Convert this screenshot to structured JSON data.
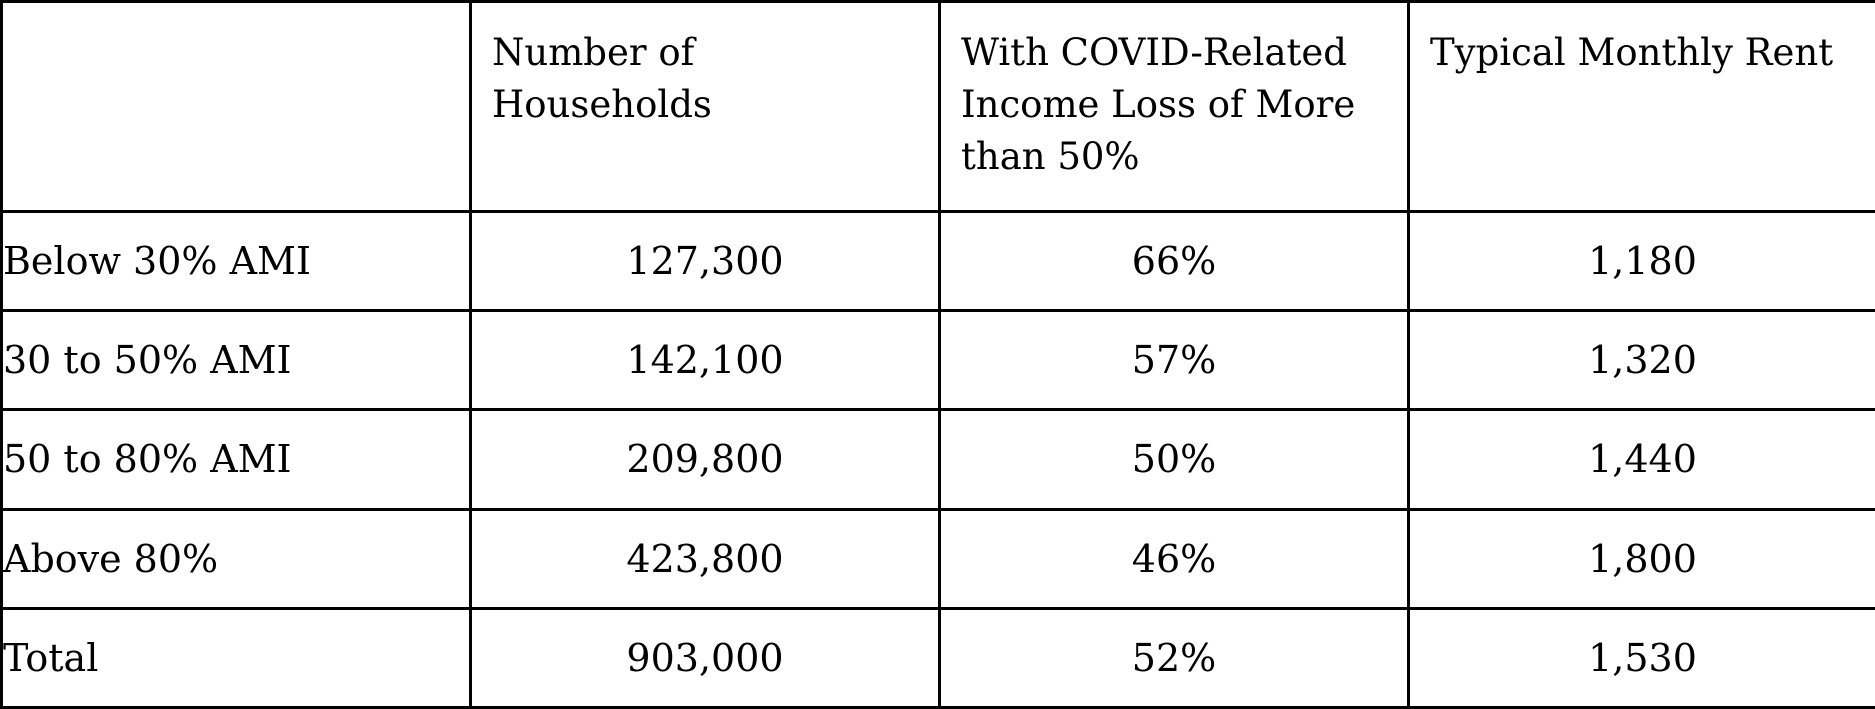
{
  "table": {
    "headers": [
      "",
      "Number of Households",
      "With COVID-Related Income Loss of More than 50%",
      "Typical Monthly Rent"
    ],
    "rows": [
      {
        "label": "Below 30% AMI",
        "households": "127,300",
        "income_loss": "66%",
        "rent": "1,180"
      },
      {
        "label": "30 to 50% AMI",
        "households": "142,100",
        "income_loss": "57%",
        "rent": "1,320"
      },
      {
        "label": "50 to 80% AMI",
        "households": "209,800",
        "income_loss": "50%",
        "rent": "1,440"
      },
      {
        "label": "Above 80%",
        "households": "423,800",
        "income_loss": "46%",
        "rent": "1,800"
      },
      {
        "label": "Total",
        "households": "903,000",
        "income_loss": "52%",
        "rent": "1,530"
      }
    ]
  }
}
